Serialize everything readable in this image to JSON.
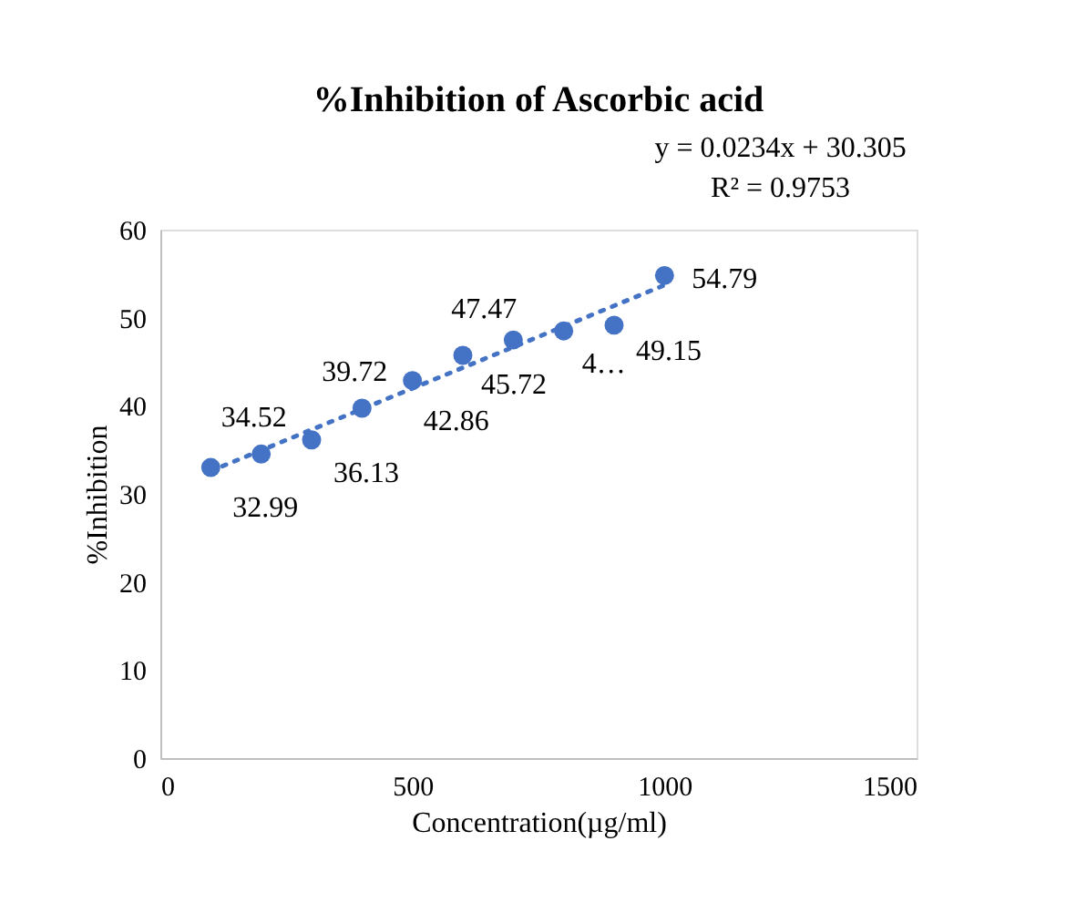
{
  "chart_data": {
    "type": "scatter",
    "title": "%Inhibition of Ascorbic acid",
    "xlabel": "Concentration(µg/ml)",
    "ylabel": "%Inhibition",
    "x": [
      100,
      200,
      300,
      400,
      500,
      600,
      700,
      800,
      900,
      1000
    ],
    "series": [
      {
        "type": "scatter",
        "color": "#4472c4",
        "marker": "circle",
        "values": [
          32.99,
          34.52,
          36.13,
          39.72,
          42.86,
          45.72,
          47.47,
          48.5,
          49.15,
          54.79
        ],
        "value_labels": [
          "32.99",
          "34.52",
          "36.13",
          "39.72",
          "42.86",
          "45.72",
          "47.47",
          "4…",
          "49.15",
          "54.79"
        ]
      },
      {
        "type": "line",
        "color": "#4472c4",
        "line_style": "dotted",
        "x": [
          100,
          1000
        ],
        "values": [
          32.6,
          53.7
        ]
      }
    ],
    "annotations": [
      "y = 0.0234x + 30.305",
      "R² = 0.9753"
    ],
    "xlim": [
      0,
      1500
    ],
    "xticks": [
      0,
      500,
      1000,
      1500
    ],
    "ylim": [
      0,
      60
    ],
    "yticks": [
      0,
      10,
      20,
      30,
      40,
      50,
      60
    ],
    "grid": false
  }
}
